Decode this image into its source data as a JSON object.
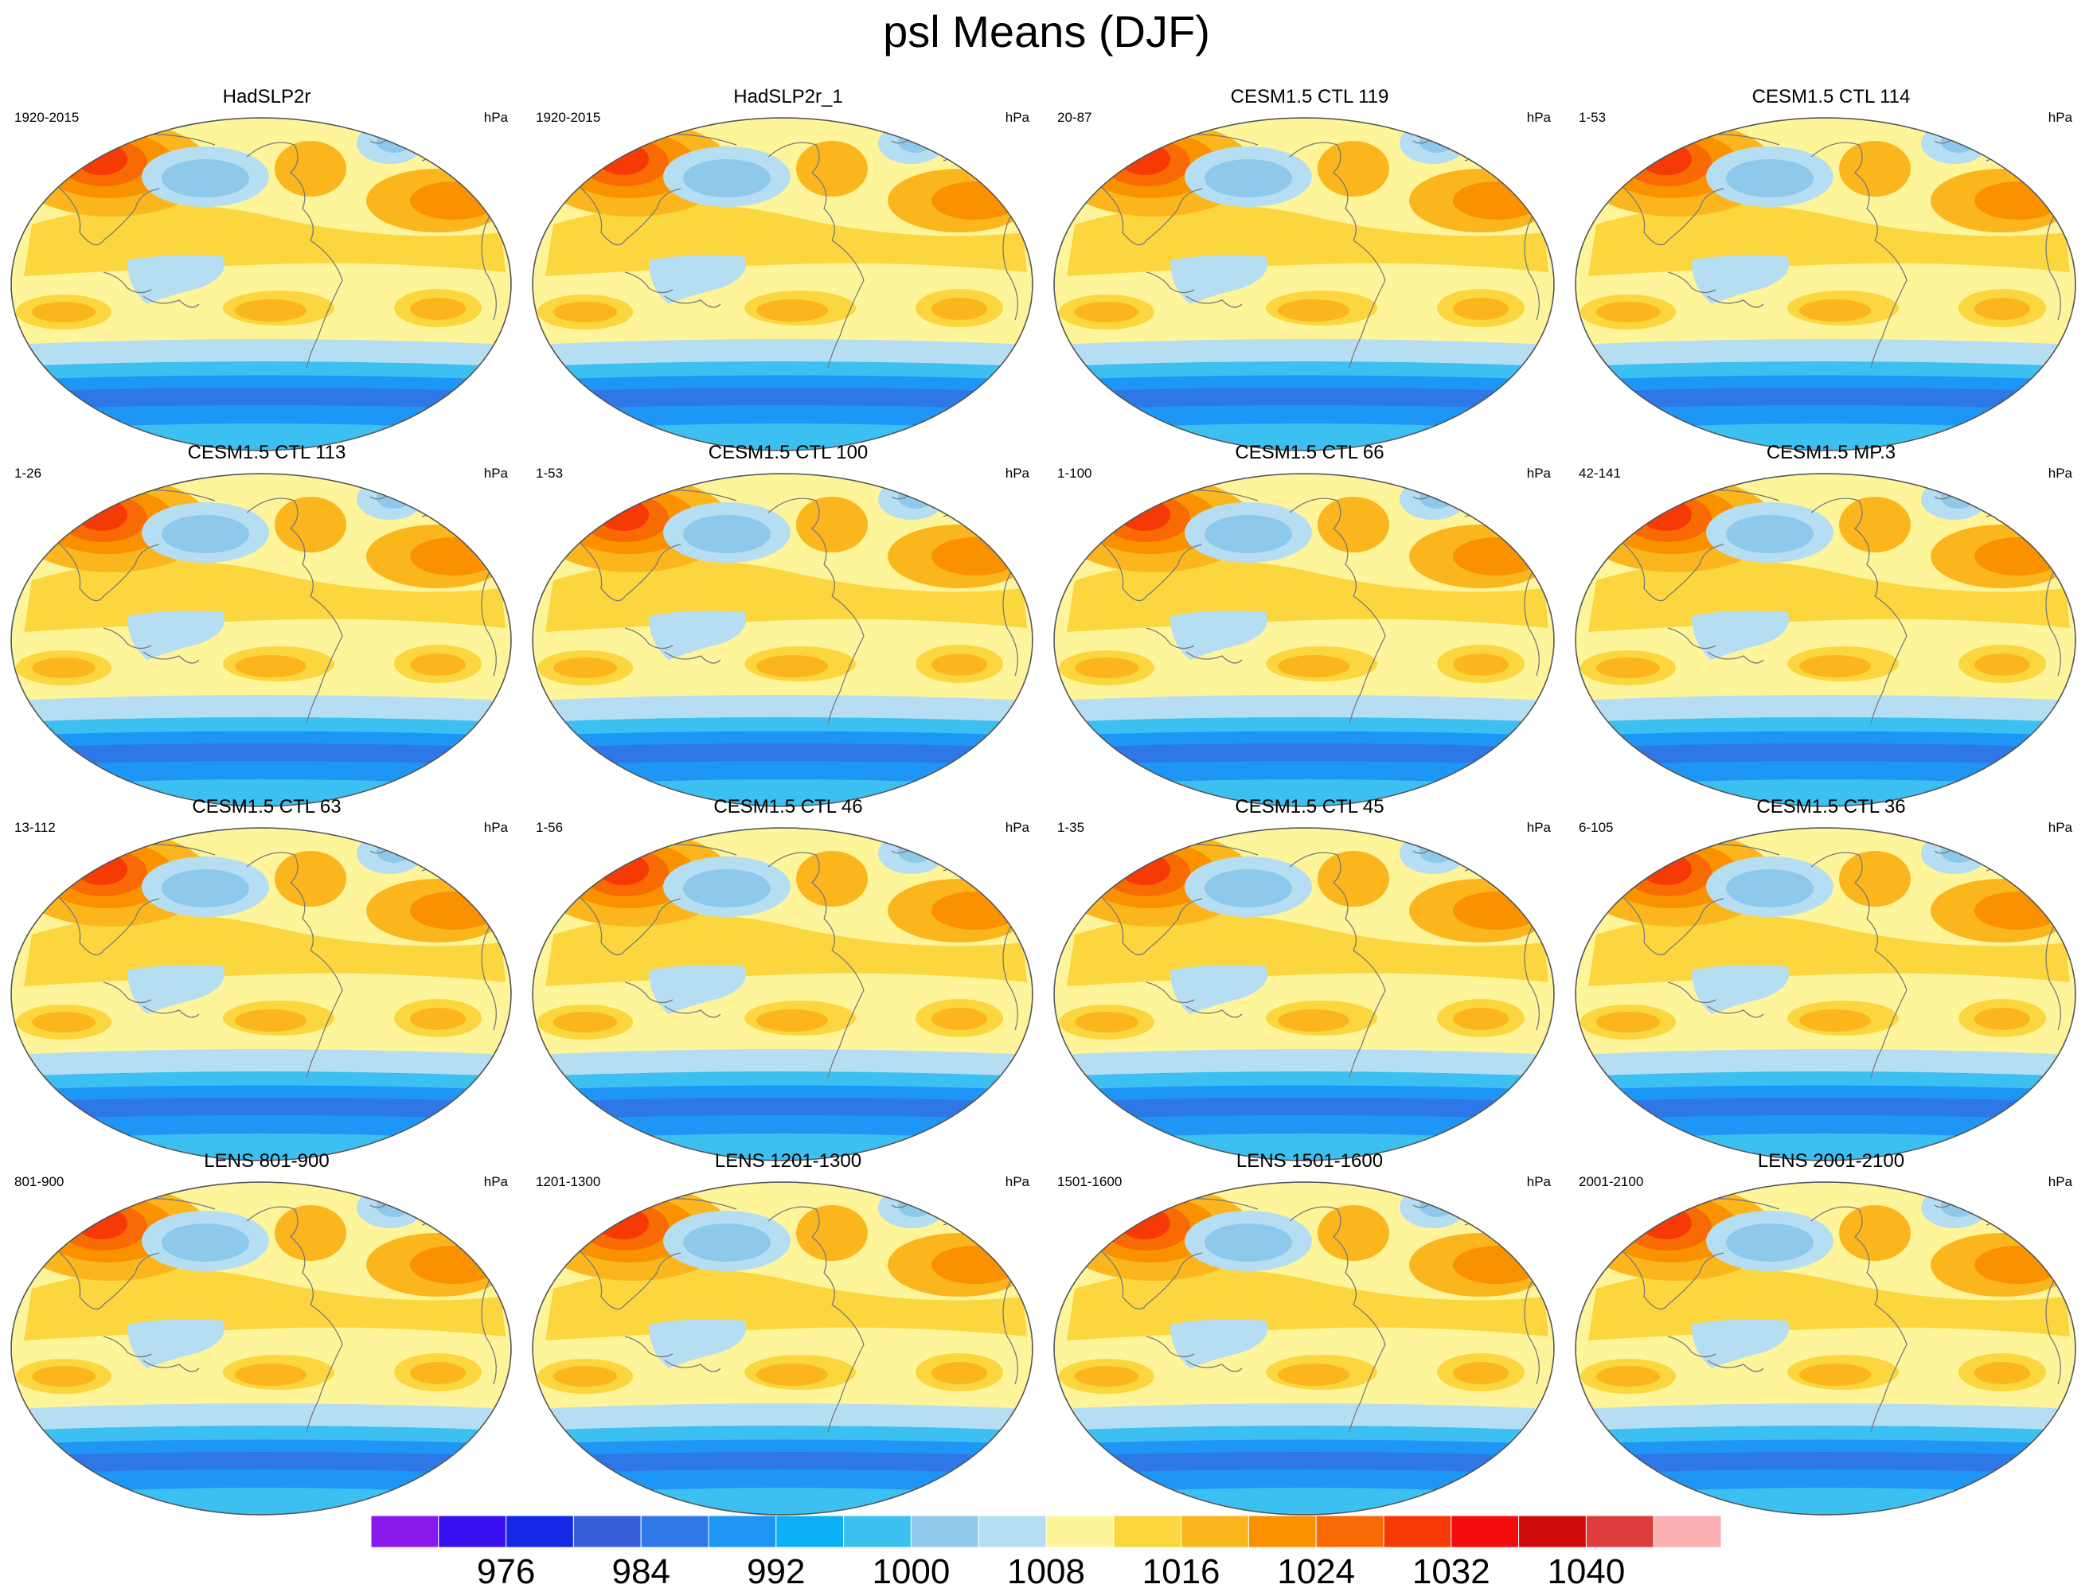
{
  "title": "psl Means (DJF)",
  "units": "hPa",
  "panels": [
    {
      "title": "HadSLP2r",
      "period": "1920-2015",
      "units": "hPa"
    },
    {
      "title": "HadSLP2r_1",
      "period": "1920-2015",
      "units": "hPa"
    },
    {
      "title": "CESM1.5 CTL 119",
      "period": "20-87",
      "units": "hPa"
    },
    {
      "title": "CESM1.5 CTL 114",
      "period": "1-53",
      "units": "hPa"
    },
    {
      "title": "CESM1.5 CTL 113",
      "period": "1-26",
      "units": "hPa"
    },
    {
      "title": "CESM1.5 CTL 100",
      "period": "1-53",
      "units": "hPa"
    },
    {
      "title": "CESM1.5 CTL 66",
      "period": "1-100",
      "units": "hPa"
    },
    {
      "title": "CESM1.5 MP.3",
      "period": "42-141",
      "units": "hPa"
    },
    {
      "title": "CESM1.5 CTL 63",
      "period": "13-112",
      "units": "hPa"
    },
    {
      "title": "CESM1.5 CTL 46",
      "period": "1-56",
      "units": "hPa"
    },
    {
      "title": "CESM1.5 CTL 45",
      "period": "1-35",
      "units": "hPa"
    },
    {
      "title": "CESM1.5 CTL 36",
      "period": "6-105",
      "units": "hPa"
    },
    {
      "title": "LENS 801-900",
      "period": "801-900",
      "units": "hPa"
    },
    {
      "title": "LENS 1201-1300",
      "period": "1201-1300",
      "units": "hPa"
    },
    {
      "title": "LENS 1501-1600",
      "period": "1501-1600",
      "units": "hPa"
    },
    {
      "title": "LENS 2001-2100",
      "period": "2001-2100",
      "units": "hPa"
    }
  ],
  "colorbar": {
    "colors": [
      "#8a1aec",
      "#3a10f0",
      "#1428e6",
      "#3760d8",
      "#2d78e6",
      "#1e96f5",
      "#0cb0f5",
      "#3cc0f2",
      "#8ec8ea",
      "#b6def3",
      "#fef59b",
      "#fbd63f",
      "#fbb61e",
      "#fa9200",
      "#f86a04",
      "#f63a06",
      "#f50c0c",
      "#cc0a0a",
      "#dc3c3c",
      "#fab0b0"
    ],
    "labels": [
      "976",
      "984",
      "992",
      "1000",
      "1008",
      "1016",
      "1024",
      "1032",
      "1040"
    ]
  }
}
